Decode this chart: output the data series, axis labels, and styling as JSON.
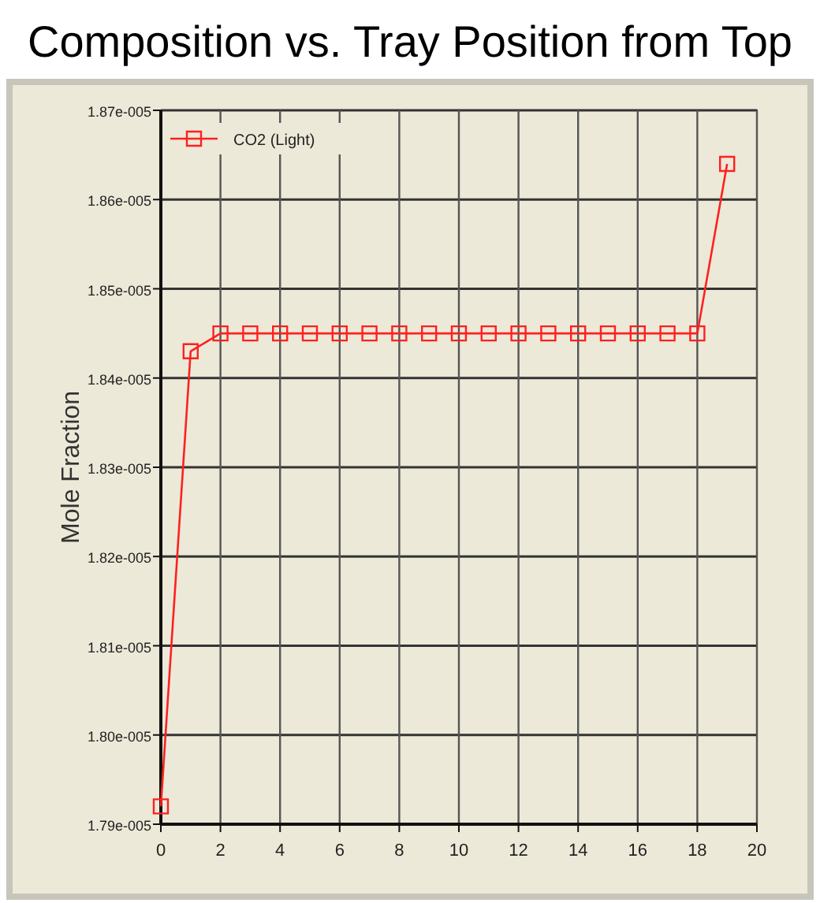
{
  "chart_data": {
    "type": "line",
    "title": "Composition vs. Tray Position from Top",
    "ylabel": "Mole Fraction",
    "x": [
      0,
      1,
      2,
      3,
      4,
      5,
      6,
      7,
      8,
      9,
      10,
      11,
      12,
      13,
      14,
      15,
      16,
      17,
      18,
      19
    ],
    "series": [
      {
        "name": "CO2 (Light)",
        "color": "#ff2020",
        "values": [
          1.792e-05,
          1.843e-05,
          1.845e-05,
          1.845e-05,
          1.845e-05,
          1.845e-05,
          1.845e-05,
          1.845e-05,
          1.845e-05,
          1.845e-05,
          1.845e-05,
          1.845e-05,
          1.845e-05,
          1.845e-05,
          1.845e-05,
          1.845e-05,
          1.845e-05,
          1.845e-05,
          1.845e-05,
          1.864e-05
        ]
      }
    ],
    "xlim": [
      0,
      20
    ],
    "xticks": [
      0,
      2,
      4,
      6,
      8,
      10,
      12,
      14,
      16,
      18,
      20
    ],
    "ylim": [
      1.79e-05,
      1.87e-05
    ],
    "yticks": [
      {
        "value": 1.79e-05,
        "label": "1.79e-005"
      },
      {
        "value": 1.8e-05,
        "label": "1.80e-005"
      },
      {
        "value": 1.81e-05,
        "label": "1.81e-005"
      },
      {
        "value": 1.82e-05,
        "label": "1.82e-005"
      },
      {
        "value": 1.83e-05,
        "label": "1.83e-005"
      },
      {
        "value": 1.84e-05,
        "label": "1.84e-005"
      },
      {
        "value": 1.85e-05,
        "label": "1.85e-005"
      },
      {
        "value": 1.86e-05,
        "label": "1.86e-005"
      },
      {
        "value": 1.87e-05,
        "label": "1.87e-005"
      }
    ],
    "grid": true,
    "legend": "top left",
    "marker": "square",
    "line_style": "solid"
  }
}
